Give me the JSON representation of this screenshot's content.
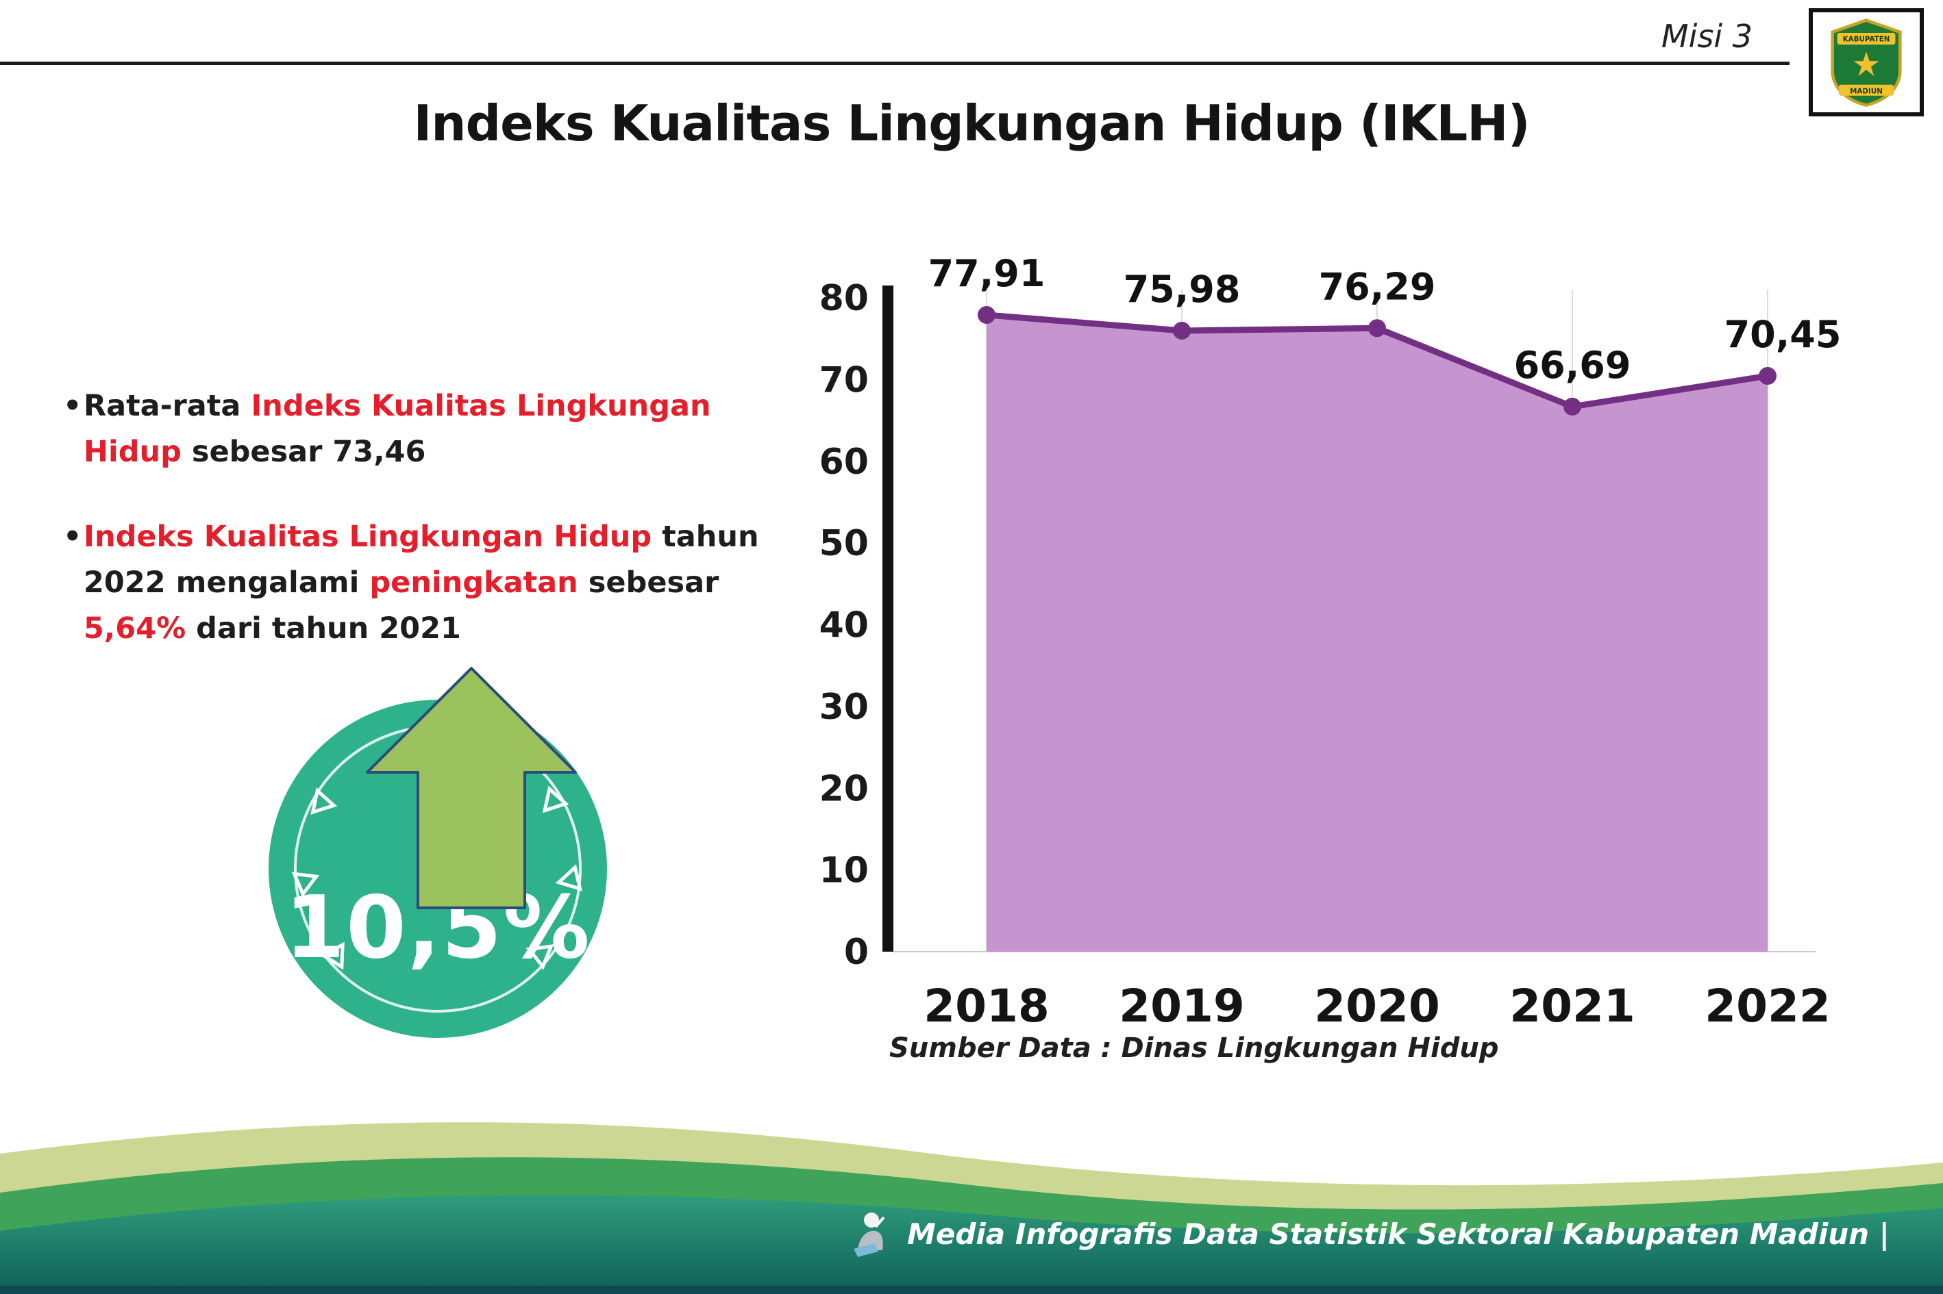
{
  "header": {
    "misi_label": "Misi 3",
    "title": "Indeks Kualitas Lingkungan Hidup (IKLH)",
    "logo_text_top": "KABUPATEN",
    "logo_text_bottom": "MADIUN"
  },
  "bullets": {
    "marker": "•",
    "b1": {
      "t1": "Rata-rata ",
      "r1": "Indeks Kualitas Lingkungan Hidup",
      "t2": " sebesar 73,46"
    },
    "b2": {
      "r1": "Indeks Kualitas Lingkungan Hidup",
      "t1": " tahun 2022 mengalami ",
      "r2": "peningkatan",
      "t2": " sebesar ",
      "r3": "5,64%",
      "t3": " dari tahun 2021"
    }
  },
  "badge": {
    "value": "10,5%",
    "circle_color": "#2eb28c",
    "arrow_color": "#9cc25e"
  },
  "chart_data": {
    "type": "area",
    "title": "Indeks Kualitas Lingkungan Hidup (IKLH)",
    "categories": [
      "2018",
      "2019",
      "2020",
      "2021",
      "2022"
    ],
    "values": [
      77.91,
      75.98,
      76.29,
      66.69,
      70.45
    ],
    "value_labels": [
      "77,91",
      "75,98",
      "76,29",
      "66,69",
      "70,45"
    ],
    "ylim": [
      0,
      80
    ],
    "yticks": [
      0,
      10,
      20,
      30,
      40,
      50,
      60,
      70,
      80
    ],
    "grid": "vertical",
    "legend": "none",
    "line_color": "#722f84",
    "fill_color": "#c694ce",
    "source": "Sumber Data : Dinas Lingkungan Hidup"
  },
  "footer": {
    "credit": "Media Infografis Data Statistik Sektoral Kabupaten Madiun |"
  },
  "colors": {
    "accent_red": "#e41e2b",
    "axis_black": "#111111",
    "footer_green": "#3fa35a",
    "footer_sage": "#cbd793",
    "footer_teal_top": "#2f9d7c",
    "footer_teal_bottom": "#0e5f58"
  }
}
